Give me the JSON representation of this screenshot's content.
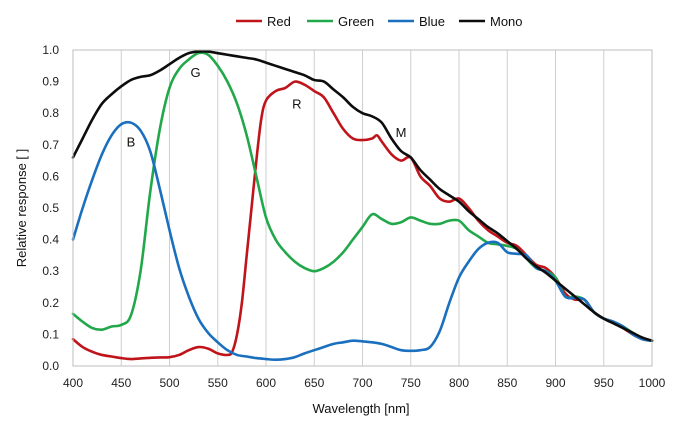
{
  "chart_data": {
    "type": "line",
    "title": "",
    "xlabel": "Wavelength [nm]",
    "ylabel": "Relative response [ ]",
    "xlim": [
      400,
      1000
    ],
    "ylim": [
      0,
      1.0
    ],
    "xticks": [
      400,
      450,
      500,
      550,
      600,
      650,
      700,
      750,
      800,
      850,
      900,
      950,
      1000
    ],
    "yticks": [
      0.0,
      0.1,
      0.2,
      0.3,
      0.4,
      0.5,
      0.6,
      0.7,
      0.8,
      0.9,
      1.0
    ],
    "ytick_labels": [
      "0.0",
      "0.1",
      "0.2",
      "0.3",
      "0.4",
      "0.5",
      "0.6",
      "0.7",
      "0.8",
      "0.9",
      "1.0"
    ],
    "grid": "vertical",
    "legend_position": "top",
    "series": [
      {
        "name": "Red",
        "color": "#c0141b",
        "points": [
          [
            400,
            0.085
          ],
          [
            410,
            0.06
          ],
          [
            420,
            0.045
          ],
          [
            430,
            0.035
          ],
          [
            440,
            0.03
          ],
          [
            450,
            0.025
          ],
          [
            460,
            0.022
          ],
          [
            470,
            0.024
          ],
          [
            480,
            0.026
          ],
          [
            490,
            0.027
          ],
          [
            500,
            0.028
          ],
          [
            510,
            0.035
          ],
          [
            520,
            0.05
          ],
          [
            530,
            0.06
          ],
          [
            540,
            0.055
          ],
          [
            550,
            0.04
          ],
          [
            560,
            0.035
          ],
          [
            565,
            0.045
          ],
          [
            570,
            0.1
          ],
          [
            575,
            0.2
          ],
          [
            580,
            0.35
          ],
          [
            585,
            0.5
          ],
          [
            590,
            0.65
          ],
          [
            595,
            0.78
          ],
          [
            600,
            0.84
          ],
          [
            610,
            0.87
          ],
          [
            620,
            0.88
          ],
          [
            630,
            0.9
          ],
          [
            640,
            0.89
          ],
          [
            650,
            0.87
          ],
          [
            660,
            0.85
          ],
          [
            670,
            0.8
          ],
          [
            680,
            0.75
          ],
          [
            690,
            0.72
          ],
          [
            700,
            0.715
          ],
          [
            710,
            0.72
          ],
          [
            715,
            0.73
          ],
          [
            720,
            0.71
          ],
          [
            730,
            0.67
          ],
          [
            740,
            0.65
          ],
          [
            750,
            0.66
          ],
          [
            760,
            0.6
          ],
          [
            770,
            0.57
          ],
          [
            780,
            0.53
          ],
          [
            790,
            0.52
          ],
          [
            800,
            0.53
          ],
          [
            810,
            0.5
          ],
          [
            820,
            0.46
          ],
          [
            830,
            0.43
          ],
          [
            840,
            0.41
          ],
          [
            850,
            0.39
          ],
          [
            860,
            0.38
          ],
          [
            870,
            0.35
          ],
          [
            880,
            0.32
          ],
          [
            890,
            0.31
          ],
          [
            900,
            0.28
          ],
          [
            910,
            0.23
          ],
          [
            920,
            0.21
          ],
          [
            930,
            0.21
          ],
          [
            940,
            0.17
          ],
          [
            950,
            0.15
          ],
          [
            960,
            0.14
          ],
          [
            970,
            0.12
          ],
          [
            980,
            0.1
          ],
          [
            990,
            0.085
          ],
          [
            1000,
            0.08
          ]
        ]
      },
      {
        "name": "Green",
        "color": "#22a84a",
        "points": [
          [
            400,
            0.165
          ],
          [
            410,
            0.14
          ],
          [
            420,
            0.12
          ],
          [
            430,
            0.115
          ],
          [
            440,
            0.125
          ],
          [
            450,
            0.13
          ],
          [
            460,
            0.16
          ],
          [
            470,
            0.3
          ],
          [
            480,
            0.55
          ],
          [
            490,
            0.75
          ],
          [
            500,
            0.88
          ],
          [
            510,
            0.94
          ],
          [
            520,
            0.97
          ],
          [
            530,
            0.99
          ],
          [
            540,
            0.985
          ],
          [
            550,
            0.95
          ],
          [
            560,
            0.9
          ],
          [
            570,
            0.83
          ],
          [
            580,
            0.73
          ],
          [
            590,
            0.6
          ],
          [
            600,
            0.47
          ],
          [
            610,
            0.4
          ],
          [
            620,
            0.36
          ],
          [
            630,
            0.33
          ],
          [
            640,
            0.31
          ],
          [
            650,
            0.3
          ],
          [
            660,
            0.31
          ],
          [
            670,
            0.33
          ],
          [
            680,
            0.36
          ],
          [
            690,
            0.4
          ],
          [
            700,
            0.44
          ],
          [
            710,
            0.48
          ],
          [
            720,
            0.465
          ],
          [
            730,
            0.45
          ],
          [
            740,
            0.455
          ],
          [
            750,
            0.47
          ],
          [
            760,
            0.46
          ],
          [
            770,
            0.45
          ],
          [
            780,
            0.45
          ],
          [
            790,
            0.46
          ],
          [
            800,
            0.46
          ],
          [
            810,
            0.43
          ],
          [
            820,
            0.41
          ],
          [
            830,
            0.39
          ],
          [
            840,
            0.385
          ],
          [
            850,
            0.38
          ],
          [
            860,
            0.37
          ],
          [
            870,
            0.34
          ],
          [
            880,
            0.31
          ],
          [
            890,
            0.3
          ],
          [
            900,
            0.28
          ],
          [
            910,
            0.22
          ],
          [
            920,
            0.22
          ],
          [
            930,
            0.21
          ],
          [
            940,
            0.17
          ],
          [
            950,
            0.15
          ],
          [
            960,
            0.14
          ],
          [
            970,
            0.125
          ],
          [
            980,
            0.105
          ],
          [
            990,
            0.085
          ],
          [
            1000,
            0.08
          ]
        ]
      },
      {
        "name": "Blue",
        "color": "#1a6fbe",
        "points": [
          [
            400,
            0.4
          ],
          [
            410,
            0.5
          ],
          [
            420,
            0.59
          ],
          [
            430,
            0.67
          ],
          [
            440,
            0.73
          ],
          [
            450,
            0.765
          ],
          [
            460,
            0.77
          ],
          [
            470,
            0.745
          ],
          [
            480,
            0.68
          ],
          [
            490,
            0.56
          ],
          [
            500,
            0.43
          ],
          [
            510,
            0.31
          ],
          [
            520,
            0.22
          ],
          [
            530,
            0.15
          ],
          [
            540,
            0.105
          ],
          [
            550,
            0.075
          ],
          [
            560,
            0.05
          ],
          [
            570,
            0.035
          ],
          [
            580,
            0.03
          ],
          [
            590,
            0.025
          ],
          [
            600,
            0.022
          ],
          [
            610,
            0.02
          ],
          [
            620,
            0.022
          ],
          [
            630,
            0.028
          ],
          [
            640,
            0.04
          ],
          [
            650,
            0.05
          ],
          [
            660,
            0.06
          ],
          [
            670,
            0.07
          ],
          [
            680,
            0.075
          ],
          [
            690,
            0.08
          ],
          [
            700,
            0.078
          ],
          [
            710,
            0.075
          ],
          [
            720,
            0.07
          ],
          [
            730,
            0.06
          ],
          [
            740,
            0.05
          ],
          [
            750,
            0.048
          ],
          [
            760,
            0.05
          ],
          [
            770,
            0.06
          ],
          [
            780,
            0.11
          ],
          [
            790,
            0.2
          ],
          [
            800,
            0.28
          ],
          [
            810,
            0.33
          ],
          [
            820,
            0.37
          ],
          [
            830,
            0.39
          ],
          [
            840,
            0.39
          ],
          [
            850,
            0.36
          ],
          [
            860,
            0.355
          ],
          [
            870,
            0.35
          ],
          [
            880,
            0.31
          ],
          [
            890,
            0.3
          ],
          [
            900,
            0.27
          ],
          [
            910,
            0.22
          ],
          [
            920,
            0.215
          ],
          [
            930,
            0.21
          ],
          [
            940,
            0.17
          ],
          [
            950,
            0.15
          ],
          [
            960,
            0.14
          ],
          [
            970,
            0.125
          ],
          [
            980,
            0.1
          ],
          [
            990,
            0.085
          ],
          [
            1000,
            0.08
          ]
        ]
      },
      {
        "name": "Mono",
        "color": "#0d0d0d",
        "points": [
          [
            400,
            0.66
          ],
          [
            410,
            0.72
          ],
          [
            420,
            0.78
          ],
          [
            430,
            0.83
          ],
          [
            440,
            0.86
          ],
          [
            450,
            0.885
          ],
          [
            460,
            0.905
          ],
          [
            470,
            0.915
          ],
          [
            480,
            0.92
          ],
          [
            490,
            0.935
          ],
          [
            500,
            0.955
          ],
          [
            510,
            0.975
          ],
          [
            520,
            0.99
          ],
          [
            530,
            0.995
          ],
          [
            540,
            0.995
          ],
          [
            550,
            0.99
          ],
          [
            560,
            0.985
          ],
          [
            570,
            0.98
          ],
          [
            580,
            0.975
          ],
          [
            590,
            0.97
          ],
          [
            600,
            0.96
          ],
          [
            610,
            0.95
          ],
          [
            620,
            0.94
          ],
          [
            630,
            0.93
          ],
          [
            640,
            0.92
          ],
          [
            650,
            0.905
          ],
          [
            660,
            0.9
          ],
          [
            670,
            0.875
          ],
          [
            680,
            0.85
          ],
          [
            690,
            0.82
          ],
          [
            700,
            0.8
          ],
          [
            710,
            0.79
          ],
          [
            720,
            0.77
          ],
          [
            730,
            0.72
          ],
          [
            740,
            0.68
          ],
          [
            750,
            0.66
          ],
          [
            760,
            0.62
          ],
          [
            770,
            0.59
          ],
          [
            780,
            0.56
          ],
          [
            790,
            0.54
          ],
          [
            800,
            0.52
          ],
          [
            810,
            0.49
          ],
          [
            820,
            0.465
          ],
          [
            830,
            0.44
          ],
          [
            840,
            0.42
          ],
          [
            850,
            0.395
          ],
          [
            860,
            0.37
          ],
          [
            870,
            0.34
          ],
          [
            880,
            0.315
          ],
          [
            890,
            0.295
          ],
          [
            900,
            0.27
          ],
          [
            910,
            0.245
          ],
          [
            920,
            0.22
          ],
          [
            930,
            0.195
          ],
          [
            940,
            0.17
          ],
          [
            950,
            0.15
          ],
          [
            960,
            0.135
          ],
          [
            970,
            0.12
          ],
          [
            980,
            0.105
          ],
          [
            990,
            0.09
          ],
          [
            1000,
            0.08
          ]
        ]
      }
    ],
    "annotations": [
      {
        "text": "G",
        "x": 527,
        "y": 0.93
      },
      {
        "text": "B",
        "x": 460,
        "y": 0.71
      },
      {
        "text": "R",
        "x": 632,
        "y": 0.83
      },
      {
        "text": "M",
        "x": 740,
        "y": 0.74
      }
    ]
  }
}
